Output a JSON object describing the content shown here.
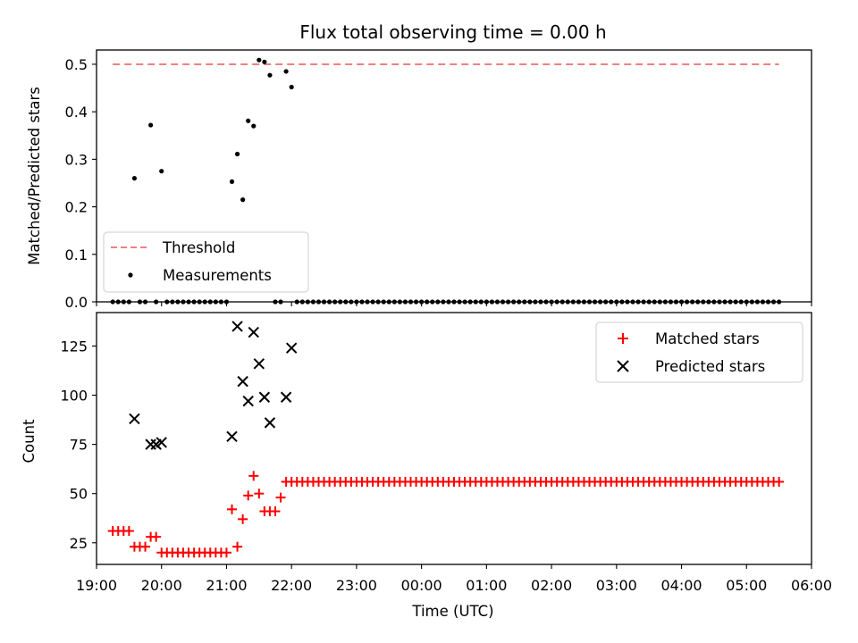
{
  "chart_data": [
    {
      "type": "scatter",
      "title": "Flux total observing time = 0.00 h",
      "xlabel": "",
      "ylabel": "Matched/Predicted stars",
      "xlim": [
        "19:00",
        "06:00"
      ],
      "ylim": [
        0,
        0.53
      ],
      "yticks": [
        0.0,
        0.1,
        0.2,
        0.3,
        0.4,
        0.5
      ],
      "yticklabels": [
        "0.0",
        "0.1",
        "0.2",
        "0.3",
        "0.4",
        "0.5"
      ],
      "legend_position": "lower-left",
      "grid": false,
      "series": [
        {
          "name": "Threshold",
          "kind": "dashed-line",
          "color": "#f08080",
          "x": [
            "19:15",
            "05:30"
          ],
          "y": [
            0.5,
            0.5
          ]
        },
        {
          "name": "Measurements",
          "kind": "dot",
          "color": "#000000",
          "x": [
            "19:35",
            "19:50",
            "20:00",
            "21:05",
            "21:10",
            "21:15",
            "21:20",
            "21:25",
            "21:30",
            "21:35",
            "21:40",
            "21:55",
            "22:00"
          ],
          "y": [
            0.26,
            0.372,
            0.275,
            0.253,
            0.311,
            0.215,
            0.381,
            0.37,
            0.509,
            0.505,
            0.477,
            0.485,
            0.452
          ],
          "zero_range": [
            "19:15",
            "05:30"
          ],
          "zero_step_minutes": 5,
          "zero_gaps": [
            [
              "19:35",
              "19:35"
            ],
            [
              "19:50",
              "19:50"
            ],
            [
              "20:00",
              "20:00"
            ],
            [
              "21:05",
              "21:40"
            ],
            [
              "21:55",
              "22:00"
            ]
          ]
        }
      ]
    },
    {
      "type": "scatter",
      "title": "",
      "xlabel": "Time (UTC)",
      "ylabel": "Count",
      "xlim": [
        "19:00",
        "06:00"
      ],
      "ylim": [
        14,
        142
      ],
      "yticks": [
        25,
        50,
        75,
        100,
        125
      ],
      "yticklabels": [
        "25",
        "50",
        "75",
        "100",
        "125"
      ],
      "xticks": [
        "19:00",
        "20:00",
        "21:00",
        "22:00",
        "23:00",
        "00:00",
        "01:00",
        "02:00",
        "03:00",
        "04:00",
        "05:00",
        "06:00"
      ],
      "legend_position": "upper-right",
      "grid": false,
      "series": [
        {
          "name": "Matched stars",
          "kind": "plus",
          "color": "#ff0000",
          "x": [
            "19:15",
            "19:20",
            "19:25",
            "19:30",
            "19:35",
            "19:40",
            "19:45",
            "19:50",
            "19:55",
            "20:00",
            "20:05",
            "20:10",
            "20:15",
            "20:20",
            "20:25",
            "20:30",
            "20:35",
            "20:40",
            "20:45",
            "20:50",
            "20:55",
            "21:00",
            "21:05",
            "21:10",
            "21:15",
            "21:20",
            "21:25",
            "21:30",
            "21:35",
            "21:40",
            "21:45",
            "21:50",
            "21:55"
          ],
          "y": [
            31,
            31,
            31,
            31,
            23,
            23,
            23,
            28,
            28,
            20,
            20,
            20,
            20,
            20,
            20,
            20,
            20,
            20,
            20,
            20,
            20,
            20,
            42,
            23,
            37,
            49,
            59,
            50,
            41,
            41,
            41,
            48,
            56
          ],
          "constant_after": {
            "from": "22:00",
            "to": "05:30",
            "step_minutes": 5,
            "value": 56
          }
        },
        {
          "name": "Predicted stars",
          "kind": "x",
          "color": "#000000",
          "x": [
            "19:35",
            "19:50",
            "19:55",
            "20:00",
            "21:05",
            "21:10",
            "21:15",
            "21:20",
            "21:25",
            "21:30",
            "21:35",
            "21:40",
            "21:55",
            "22:00"
          ],
          "y": [
            88,
            75,
            75,
            76,
            79,
            135,
            107,
            97,
            132,
            116,
            99,
            86,
            99,
            124
          ]
        }
      ]
    }
  ]
}
